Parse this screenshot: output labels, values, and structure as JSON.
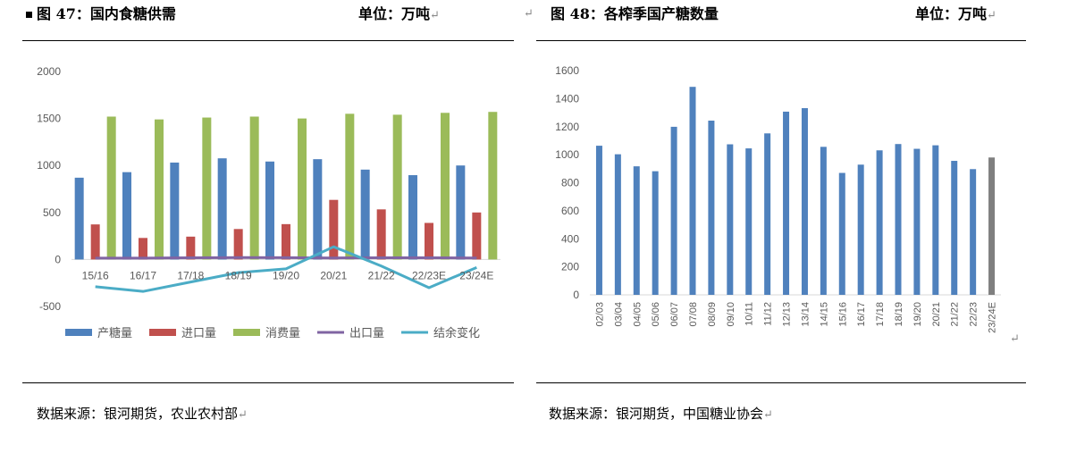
{
  "left": {
    "title": "图 47：国内食糖供需",
    "unit": "单位：万吨",
    "source": "数据来源：银河期货，农业农村部",
    "chart_data": {
      "type": "bar+line",
      "categories": [
        "15/16",
        "16/17",
        "17/18",
        "18/19",
        "19/20",
        "20/21",
        "21/22",
        "22/23E",
        "23/24E"
      ],
      "ylim": [
        -500,
        2000
      ],
      "yticks": [
        "2000",
        "1500",
        "1000",
        "500",
        "0",
        "-500"
      ],
      "series": [
        {
          "name": "产糖量",
          "kind": "bar",
          "color": "#4f81bd",
          "values": [
            870,
            929,
            1031,
            1076,
            1042,
            1067,
            956,
            897,
            1000
          ]
        },
        {
          "name": "进口量",
          "kind": "bar",
          "color": "#c0504d",
          "values": [
            373,
            229,
            243,
            324,
            376,
            634,
            533,
            389,
            500
          ]
        },
        {
          "name": "消费量",
          "kind": "bar",
          "color": "#9bbb59",
          "values": [
            1520,
            1490,
            1510,
            1520,
            1500,
            1550,
            1540,
            1560,
            1570
          ]
        },
        {
          "name": "出口量",
          "kind": "line",
          "color": "#8064a2",
          "values": [
            15,
            15,
            18,
            20,
            19,
            16,
            18,
            18,
            16
          ]
        },
        {
          "name": "结余变化",
          "kind": "line",
          "color": "#4bacc6",
          "values": [
            -290,
            -340,
            -240,
            -140,
            -100,
            135,
            -70,
            -300,
            -85
          ]
        }
      ]
    }
  },
  "right": {
    "title": "图 48：各榨季国产糖数量",
    "unit": "单位：万吨",
    "source": "数据来源：银河期货，中国糖业协会",
    "chart_data": {
      "type": "bar",
      "categories": [
        "02/03",
        "03/04",
        "04/05",
        "05/06",
        "06/07",
        "07/08",
        "08/09",
        "09/10",
        "10/11",
        "11/12",
        "12/13",
        "13/14",
        "14/15",
        "15/16",
        "16/17",
        "17/18",
        "18/19",
        "19/20",
        "20/21",
        "21/22",
        "22/23",
        "23/24E"
      ],
      "values": [
        1064,
        1003,
        917,
        882,
        1199,
        1484,
        1243,
        1074,
        1045,
        1152,
        1307,
        1332,
        1056,
        870,
        929,
        1031,
        1076,
        1042,
        1067,
        956,
        897,
        980
      ],
      "ylim": [
        0,
        1600
      ],
      "yticks": [
        "1600",
        "1400",
        "1200",
        "1000",
        "800",
        "600",
        "400",
        "200",
        "0"
      ],
      "bar_color": "#4f81bd",
      "estimate_color": "#7f7f7f"
    }
  }
}
